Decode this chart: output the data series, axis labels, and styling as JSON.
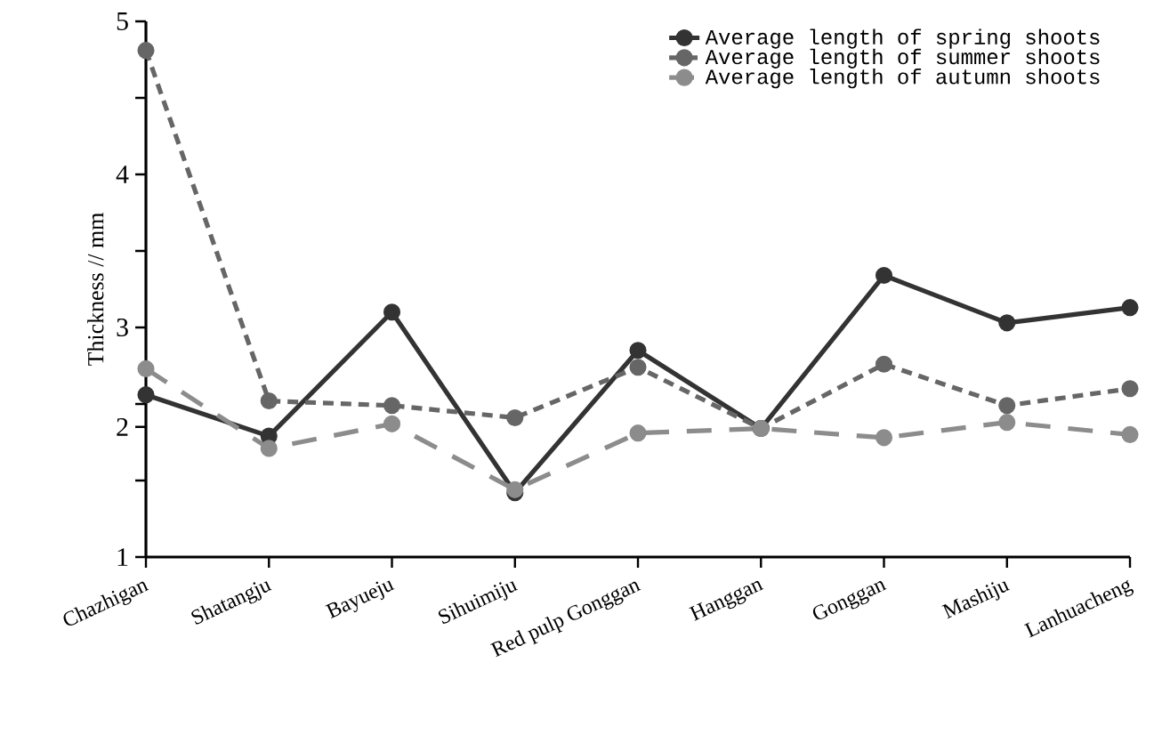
{
  "chart_data": {
    "type": "line",
    "ylabel": "Thickness // mm",
    "categories": [
      "Chazhigan",
      "Shatangju",
      "Bayueju",
      "Sihuimiju",
      "Red pulp Gonggan",
      "Hanggan",
      "Gonggan",
      "Mashiju",
      "Lanhuacheng"
    ],
    "series": [
      {
        "name": "Average length of spring shoots",
        "color": "#333333",
        "line_style": "solid",
        "values": [
          2.56,
          2.29,
          3.1,
          1.92,
          2.85,
          2.34,
          3.34,
          3.03,
          3.13
        ]
      },
      {
        "name": "Average length of summer shoots",
        "color": "#666666",
        "line_style": "dashed",
        "values": [
          4.81,
          2.52,
          2.49,
          2.41,
          2.74,
          2.34,
          2.76,
          2.49,
          2.6
        ]
      },
      {
        "name": "Average length of autumn shoots",
        "color": "#8c8c8c",
        "line_style": "loosely dashed",
        "values": [
          2.73,
          2.21,
          2.37,
          1.94,
          2.31,
          2.34,
          2.28,
          2.38,
          2.3
        ]
      }
    ],
    "ylim": [
      1.5,
      5
    ],
    "yticks": [
      5,
      {
        "value": 4.5,
        "label": null
      },
      4,
      {
        "value": 3.5,
        "label": null
      },
      3,
      {
        "value": 2.5,
        "label": null
      },
      {
        "value": 2.35,
        "label": "2"
      },
      {
        "value": 2,
        "label": null
      },
      {
        "value": 1.5,
        "label": "1"
      }
    ],
    "marker": "circle",
    "legend": "top right",
    "grid": false
  }
}
